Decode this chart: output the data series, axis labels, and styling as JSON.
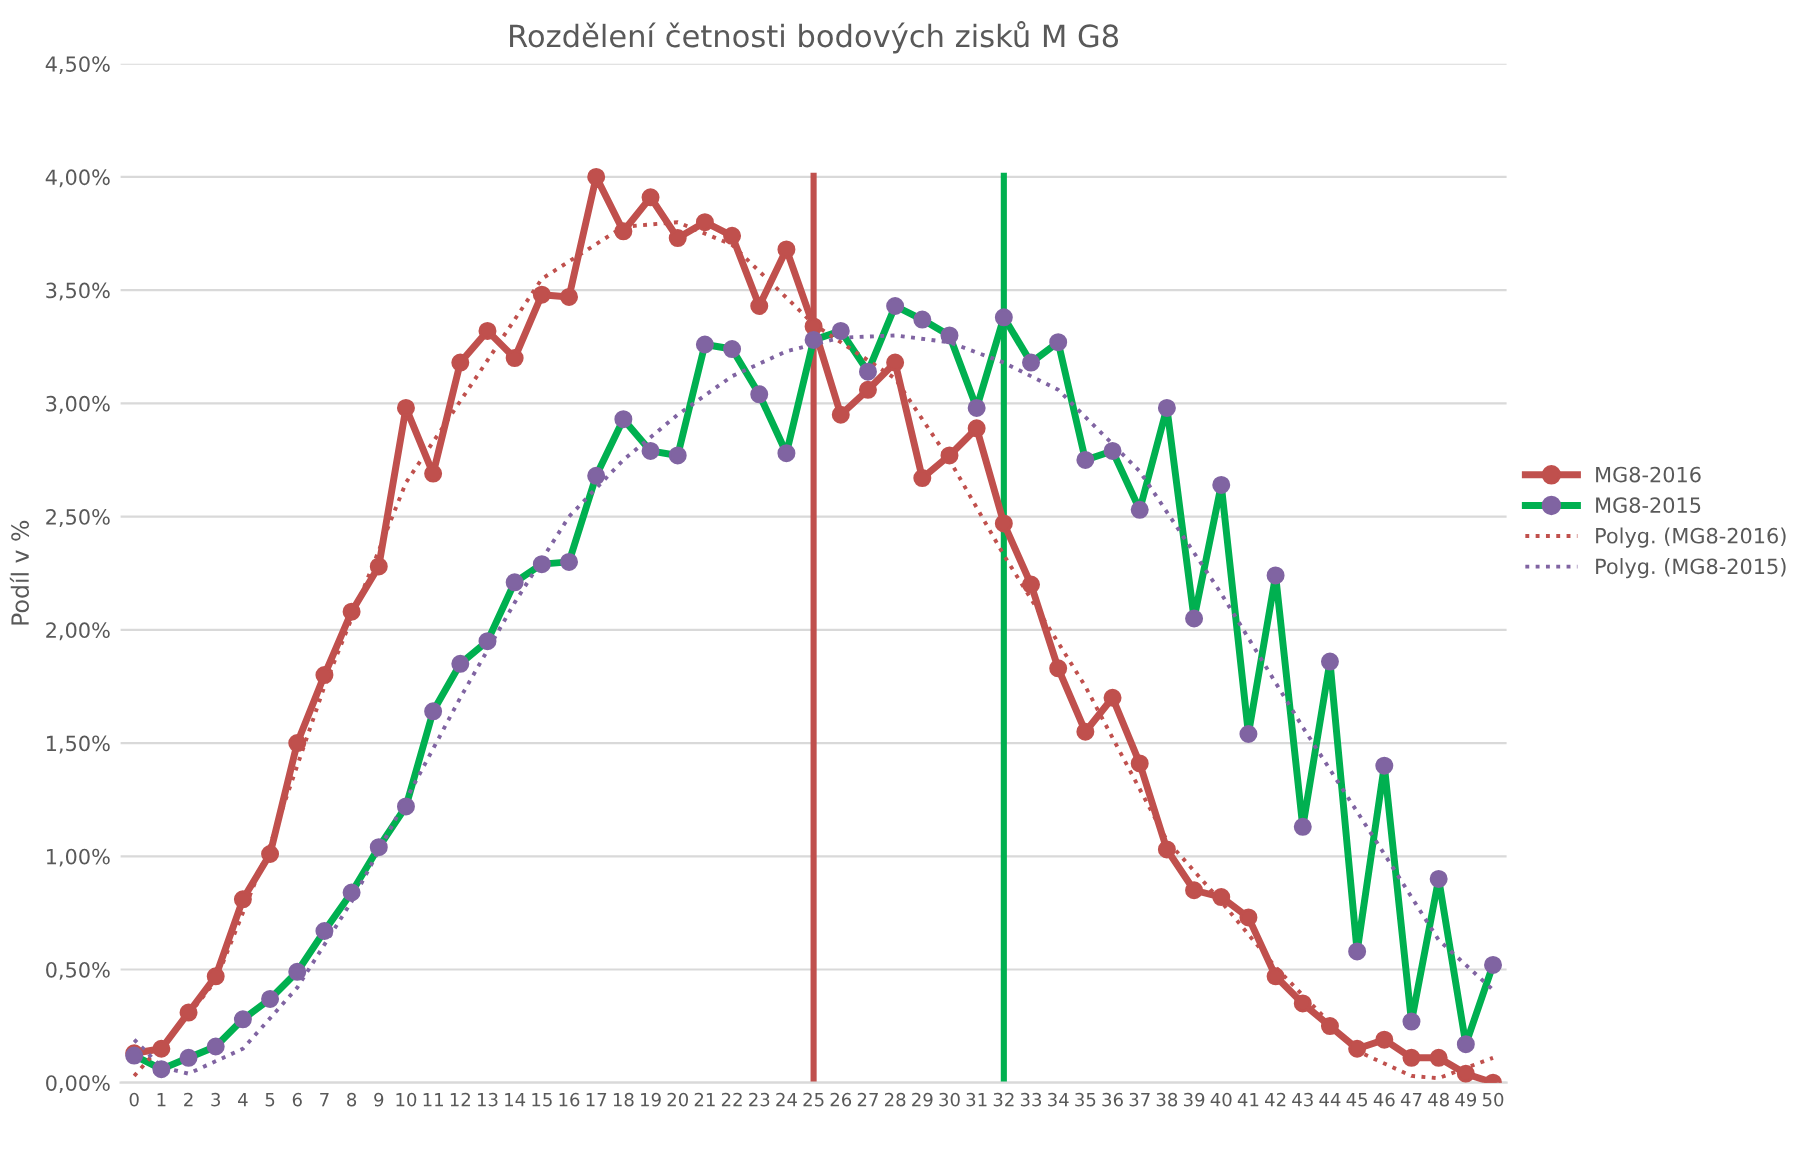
{
  "chart_data": {
    "type": "line",
    "title": "Rozdělení četnosti bodových zisků M G8",
    "ylabel": "Podíl v %",
    "x": [
      0,
      1,
      2,
      3,
      4,
      5,
      6,
      7,
      8,
      9,
      10,
      11,
      12,
      13,
      14,
      15,
      16,
      17,
      18,
      19,
      20,
      21,
      22,
      23,
      24,
      25,
      26,
      27,
      28,
      29,
      30,
      31,
      32,
      33,
      34,
      35,
      36,
      37,
      38,
      39,
      40,
      41,
      42,
      43,
      44,
      45,
      46,
      47,
      48,
      49,
      50
    ],
    "xlim": [
      -0.5,
      50.5
    ],
    "xticks": [
      0,
      1,
      2,
      3,
      4,
      5,
      6,
      7,
      8,
      9,
      10,
      11,
      12,
      13,
      14,
      15,
      16,
      17,
      18,
      19,
      20,
      21,
      22,
      23,
      24,
      25,
      26,
      27,
      28,
      29,
      30,
      31,
      32,
      33,
      34,
      35,
      36,
      37,
      38,
      39,
      40,
      41,
      42,
      43,
      44,
      45,
      46,
      47,
      48,
      49,
      50
    ],
    "ylim": [
      0,
      4.5
    ],
    "yticks": [
      {
        "value": 0,
        "label": "0,00%"
      },
      {
        "value": 0.5,
        "label": "0,50%"
      },
      {
        "value": 1,
        "label": "1,00%"
      },
      {
        "value": 1.5,
        "label": "1,50%"
      },
      {
        "value": 2,
        "label": "2,00%"
      },
      {
        "value": 2.5,
        "label": "2,50%"
      },
      {
        "value": 3,
        "label": "3,00%"
      },
      {
        "value": 3.5,
        "label": "3,50%"
      },
      {
        "value": 4,
        "label": "4,00%"
      },
      {
        "value": 4.5,
        "label": "4,50%"
      }
    ],
    "grid": "y",
    "legend": "right",
    "marker": "circle",
    "line_style": "solid",
    "series": [
      {
        "name": "MG8-2016",
        "color": "#c0504d",
        "values": [
          0.13,
          0.15,
          0.31,
          0.47,
          0.81,
          1.01,
          1.5,
          1.8,
          2.08,
          2.28,
          2.98,
          2.69,
          3.18,
          3.32,
          3.2,
          3.48,
          3.47,
          4.0,
          3.76,
          3.91,
          3.73,
          3.8,
          3.74,
          3.43,
          3.68,
          3.34,
          2.95,
          3.06,
          3.18,
          2.67,
          2.77,
          2.89,
          2.47,
          2.2,
          1.83,
          1.55,
          1.7,
          1.41,
          1.03,
          0.85,
          0.82,
          0.73,
          0.47,
          0.35,
          0.25,
          0.15,
          0.19,
          0.11,
          0.11,
          0.04,
          0.0
        ]
      },
      {
        "name": "MG8-2015",
        "color": "#00b050",
        "colors": [
          "#8064a2",
          "#8064a2",
          "#8064a2",
          "#8064a2",
          "#8064a2",
          "#8064a2",
          "#8064a2",
          "#8064a2",
          "#8064a2",
          "#8064a2",
          "#8064a2",
          "#8064a2",
          "#8064a2",
          "#8064a2",
          "#8064a2",
          "#8064a2",
          "#8064a2",
          "#8064a2",
          "#8064a2",
          "#8064a2",
          "#8064a2",
          "#8064a2",
          "#8064a2",
          "#8064a2",
          "#8064a2",
          "#8064a2",
          "#8064a2",
          "#8064a2",
          "#8064a2",
          "#8064a2",
          "#8064a2",
          "#8064a2",
          "#8064a2",
          "#8064a2",
          "#8064a2",
          "#8064a2",
          "#8064a2",
          "#8064a2",
          "#8064a2",
          "#8064a2",
          "#8064a2",
          "#8064a2",
          "#8064a2",
          "#8064a2",
          "#8064a2",
          "#8064a2",
          "#8064a2",
          "#8064a2",
          "#8064a2",
          "#8064a2",
          "#8064a2"
        ],
        "values": [
          0.12,
          0.06,
          0.11,
          0.16,
          0.28,
          0.37,
          0.49,
          0.67,
          0.84,
          1.04,
          1.22,
          1.64,
          1.85,
          1.95,
          2.21,
          2.29,
          2.3,
          2.68,
          2.93,
          2.79,
          2.77,
          3.26,
          3.24,
          3.04,
          2.78,
          3.28,
          3.32,
          3.14,
          3.43,
          3.37,
          3.3,
          2.98,
          3.38,
          3.18,
          3.27,
          2.75,
          2.79,
          2.53,
          2.98,
          2.05,
          2.64,
          1.54,
          2.24,
          1.13,
          1.86,
          0.58,
          1.4,
          0.27,
          0.9,
          0.17,
          0.52
        ]
      },
      {
        "name": "Polyg. (MG8-2016)",
        "color": "#c0504d",
        "marker": "none",
        "line_style": "dotted",
        "x": [
          0,
          2,
          3,
          5,
          7,
          10,
          15,
          18,
          20,
          22,
          25,
          28,
          30,
          32,
          35,
          38,
          40,
          42,
          45,
          47,
          48,
          50
        ],
        "values": [
          0.03,
          0.3,
          0.45,
          1.05,
          1.75,
          2.65,
          3.55,
          3.78,
          3.8,
          3.7,
          3.35,
          3.11,
          2.75,
          2.33,
          1.75,
          1.07,
          0.8,
          0.51,
          0.14,
          0.03,
          0.02,
          0.11
        ]
      },
      {
        "name": "Polyg. (MG8-2015)",
        "color": "#8064a2",
        "marker": "none",
        "line_style": "dotted",
        "x": [
          0,
          1,
          2,
          4,
          6,
          8,
          10,
          12,
          14,
          16,
          18,
          20,
          22,
          24,
          26,
          28,
          30,
          32,
          34,
          37,
          40,
          43,
          46,
          48,
          50
        ],
        "values": [
          0.19,
          0.07,
          0.04,
          0.15,
          0.42,
          0.8,
          1.25,
          1.7,
          2.12,
          2.5,
          2.75,
          2.95,
          3.12,
          3.23,
          3.29,
          3.3,
          3.27,
          3.18,
          3.06,
          2.7,
          2.16,
          1.57,
          1.01,
          0.63,
          0.41
        ]
      }
    ],
    "ref_lines": [
      {
        "axis": "x",
        "value": 25,
        "color": "#c0504d"
      },
      {
        "axis": "x",
        "value": 32,
        "color": "#00b050"
      }
    ]
  }
}
